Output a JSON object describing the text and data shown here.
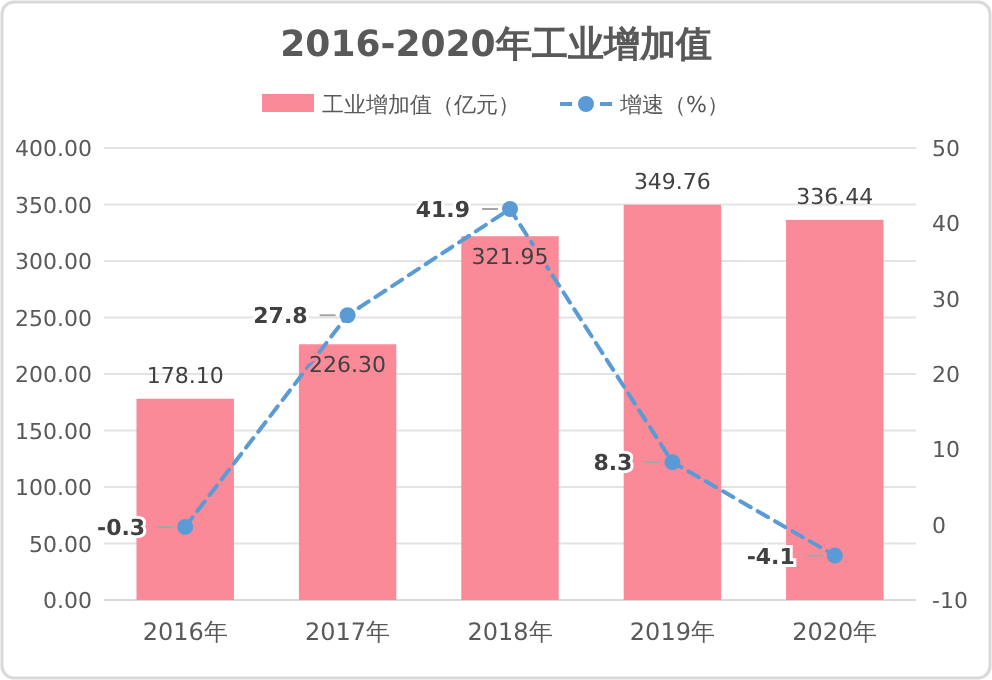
{
  "chart_data": {
    "type": "bar",
    "title": "2016-2020年工业增加值",
    "categories": [
      "2016年",
      "2017年",
      "2018年",
      "2019年",
      "2020年"
    ],
    "series": [
      {
        "name": "工业增加值（亿元）",
        "color": "#fb8a99",
        "values": [
          178.1,
          226.3,
          321.95,
          349.76,
          336.44
        ],
        "value_labels": [
          "178.10",
          "226.30",
          "321.95",
          "349.76",
          "336.44"
        ]
      },
      {
        "name": "增速（%）",
        "type": "line",
        "axis": "y2",
        "color": "#5b9bd5",
        "line_style": "dashed",
        "marker": "circle",
        "values": [
          -0.3,
          27.8,
          41.9,
          8.3,
          -4.1
        ],
        "value_labels": [
          "-0.3",
          "27.8",
          "41.9",
          "8.3",
          "-4.1"
        ]
      }
    ],
    "ylim": [
      0,
      400
    ],
    "yticks": [
      {
        "value": 0,
        "label": "0.00"
      },
      {
        "value": 50,
        "label": "50.00"
      },
      {
        "value": 100,
        "label": "100.00"
      },
      {
        "value": 150,
        "label": "150.00"
      },
      {
        "value": 200,
        "label": "200.00"
      },
      {
        "value": 250,
        "label": "250.00"
      },
      {
        "value": 300,
        "label": "300.00"
      },
      {
        "value": 350,
        "label": "350.00"
      },
      {
        "value": 400,
        "label": "400.00"
      }
    ],
    "y2lim": [
      -10,
      50
    ],
    "y2ticks": [
      -10,
      0,
      10,
      20,
      30,
      40,
      50
    ],
    "grid": "y",
    "legend": "top"
  }
}
